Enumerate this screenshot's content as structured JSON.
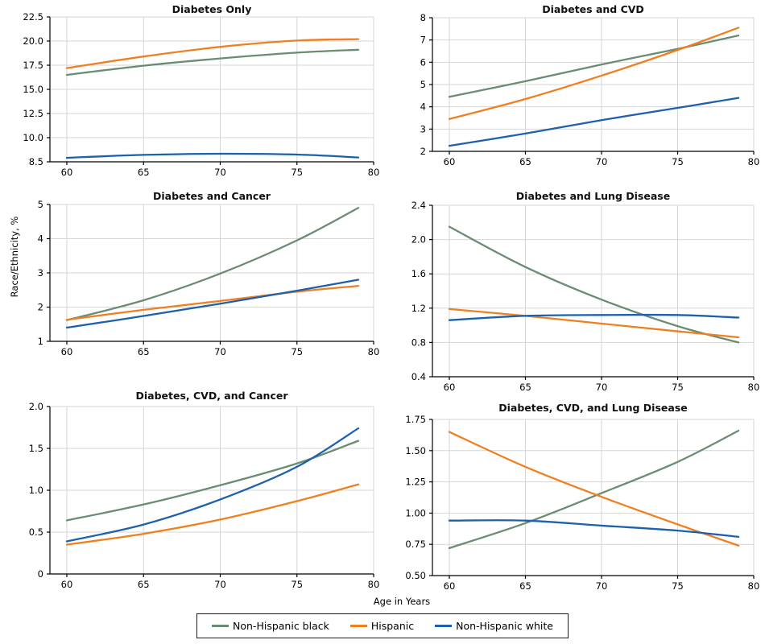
{
  "figure": {
    "xlabel": "Age in Years",
    "ylabel": "Race/Ethnicity, %",
    "background": "#ffffff",
    "grid_color": "#d6d6d6",
    "axis_color": "#000000",
    "legend_position": "bottom-center",
    "legend": [
      {
        "label": "Non-Hispanic black",
        "color": "#6a8c72"
      },
      {
        "label": "Hispanic",
        "color": "#ef7f1f"
      },
      {
        "label": "Non-Hispanic white",
        "color": "#1d60ac"
      }
    ]
  },
  "chart_data": [
    {
      "type": "line",
      "title": "Diabetes Only",
      "x": [
        60,
        65,
        70,
        75,
        79
      ],
      "xticks": [
        60,
        65,
        70,
        75,
        80
      ],
      "xtick_labels": [
        "60",
        "65",
        "70",
        "75",
        "80"
      ],
      "yticks": [
        8.5,
        10.0,
        12.5,
        15.0,
        17.5,
        20.0,
        22.5
      ],
      "ytick_labels": [
        "8.5",
        "10.0",
        "12.5",
        "15.0",
        "17.5",
        "20.0",
        "22.5"
      ],
      "ylim": [
        8.5,
        22.5
      ],
      "grid": true,
      "series": [
        {
          "name": "Non-Hispanic black",
          "values": [
            16.5,
            17.45,
            18.2,
            18.8,
            19.1
          ]
        },
        {
          "name": "Hispanic",
          "values": [
            17.2,
            18.4,
            19.4,
            20.05,
            20.2
          ]
        },
        {
          "name": "Non-Hispanic white",
          "values": [
            8.75,
            8.93,
            9.0,
            8.95,
            8.77
          ]
        }
      ]
    },
    {
      "type": "line",
      "title": "Diabetes and CVD",
      "x": [
        60,
        65,
        70,
        75,
        79
      ],
      "xticks": [
        60,
        65,
        70,
        75,
        80
      ],
      "xtick_labels": [
        "60",
        "65",
        "70",
        "75",
        "80"
      ],
      "yticks": [
        2,
        3,
        4,
        5,
        6,
        7,
        8
      ],
      "ytick_labels": [
        "2",
        "3",
        "4",
        "5",
        "6",
        "7",
        "8"
      ],
      "ylim": [
        2,
        8
      ],
      "grid": true,
      "series": [
        {
          "name": "Non-Hispanic black",
          "values": [
            4.45,
            5.15,
            5.9,
            6.6,
            7.2
          ]
        },
        {
          "name": "Hispanic",
          "values": [
            3.45,
            4.35,
            5.4,
            6.55,
            7.55
          ]
        },
        {
          "name": "Non-Hispanic white",
          "values": [
            2.25,
            2.8,
            3.4,
            3.95,
            4.4
          ]
        }
      ]
    },
    {
      "type": "line",
      "title": "Diabetes and Cancer",
      "x": [
        60,
        65,
        70,
        75,
        79
      ],
      "xticks": [
        60,
        65,
        70,
        75,
        80
      ],
      "xtick_labels": [
        "60",
        "65",
        "70",
        "75",
        "80"
      ],
      "yticks": [
        1,
        2,
        3,
        4,
        5
      ],
      "ytick_labels": [
        "1",
        "2",
        "3",
        "4",
        "5"
      ],
      "ylim": [
        1,
        5
      ],
      "grid": true,
      "series": [
        {
          "name": "Non-Hispanic black",
          "values": [
            1.62,
            2.2,
            2.98,
            3.95,
            4.9
          ]
        },
        {
          "name": "Hispanic",
          "values": [
            1.63,
            1.92,
            2.18,
            2.45,
            2.62
          ]
        },
        {
          "name": "Non-Hispanic white",
          "values": [
            1.4,
            1.74,
            2.1,
            2.48,
            2.8
          ]
        }
      ]
    },
    {
      "type": "line",
      "title": "Diabetes and Lung Disease",
      "x": [
        60,
        65,
        70,
        75,
        79
      ],
      "xticks": [
        60,
        65,
        70,
        75,
        80
      ],
      "xtick_labels": [
        "60",
        "65",
        "70",
        "75",
        "80"
      ],
      "yticks": [
        0.4,
        0.8,
        1.2,
        1.6,
        2.0,
        2.4
      ],
      "ytick_labels": [
        "0.4",
        "0.8",
        "1.2",
        "1.6",
        "2.0",
        "2.4"
      ],
      "ylim": [
        0.4,
        2.4
      ],
      "grid": true,
      "series": [
        {
          "name": "Non-Hispanic black",
          "values": [
            2.15,
            1.68,
            1.3,
            0.99,
            0.8
          ]
        },
        {
          "name": "Hispanic",
          "values": [
            1.19,
            1.11,
            1.02,
            0.93,
            0.86
          ]
        },
        {
          "name": "Non-Hispanic white",
          "values": [
            1.06,
            1.11,
            1.12,
            1.12,
            1.09
          ]
        }
      ]
    },
    {
      "type": "line",
      "title": "Diabetes, CVD, and Cancer",
      "x": [
        60,
        65,
        70,
        75,
        79
      ],
      "xticks": [
        60,
        65,
        70,
        75,
        80
      ],
      "xtick_labels": [
        "60",
        "65",
        "70",
        "75",
        "80"
      ],
      "yticks": [
        0,
        0.5,
        1.0,
        1.5,
        2.0
      ],
      "ytick_labels": [
        "0",
        "0.5",
        "1.0",
        "1.5",
        "2.0"
      ],
      "ylim": [
        0,
        2.0
      ],
      "grid": true,
      "series": [
        {
          "name": "Non-Hispanic black",
          "values": [
            0.64,
            0.83,
            1.06,
            1.32,
            1.59
          ]
        },
        {
          "name": "Hispanic",
          "values": [
            0.35,
            0.48,
            0.65,
            0.87,
            1.07
          ]
        },
        {
          "name": "Non-Hispanic white",
          "values": [
            0.39,
            0.59,
            0.89,
            1.28,
            1.74
          ]
        }
      ]
    },
    {
      "type": "line",
      "title": "Diabetes, CVD, and Lung Disease",
      "x": [
        60,
        65,
        70,
        75,
        79
      ],
      "xticks": [
        60,
        65,
        70,
        75,
        80
      ],
      "xtick_labels": [
        "60",
        "65",
        "70",
        "75",
        "80"
      ],
      "yticks": [
        0.5,
        0.75,
        1.0,
        1.25,
        1.5,
        1.75
      ],
      "ytick_labels": [
        "0.50",
        "0.75",
        "1.00",
        "1.25",
        "1.50",
        "1.75"
      ],
      "ylim": [
        0.5,
        1.75
      ],
      "grid": true,
      "series": [
        {
          "name": "Non-Hispanic black",
          "values": [
            0.72,
            0.92,
            1.16,
            1.41,
            1.66
          ]
        },
        {
          "name": "Hispanic",
          "values": [
            1.65,
            1.37,
            1.13,
            0.91,
            0.74
          ]
        },
        {
          "name": "Non-Hispanic white",
          "values": [
            0.94,
            0.94,
            0.9,
            0.86,
            0.81
          ]
        }
      ]
    }
  ]
}
